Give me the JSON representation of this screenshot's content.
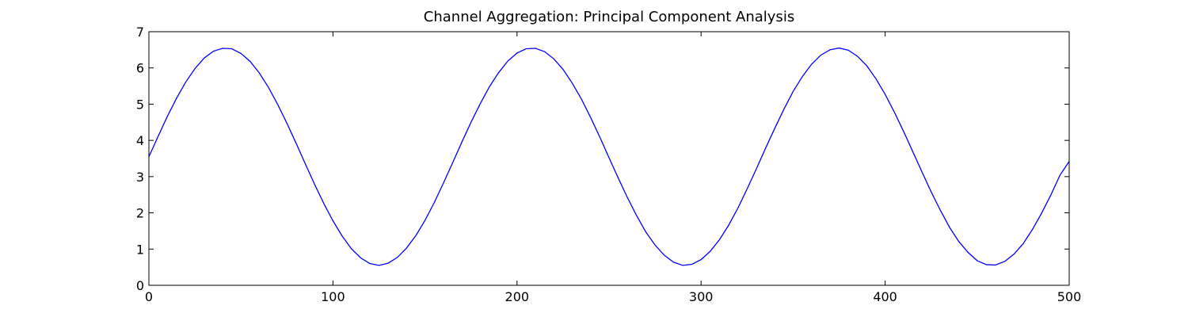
{
  "chart_data": {
    "type": "line",
    "title": "Channel Aggregation: Principal Component Analysis",
    "x": [
      0,
      5,
      10,
      15,
      20,
      25,
      30,
      35,
      40,
      45,
      50,
      55,
      60,
      65,
      70,
      75,
      80,
      85,
      90,
      95,
      100,
      105,
      110,
      115,
      120,
      125,
      130,
      135,
      140,
      145,
      150,
      155,
      160,
      165,
      170,
      175,
      180,
      185,
      190,
      195,
      200,
      205,
      210,
      215,
      220,
      225,
      230,
      235,
      240,
      245,
      250,
      255,
      260,
      265,
      270,
      275,
      280,
      285,
      290,
      295,
      300,
      305,
      310,
      315,
      320,
      325,
      330,
      335,
      340,
      345,
      350,
      355,
      360,
      365,
      370,
      375,
      380,
      385,
      390,
      395,
      400,
      405,
      410,
      415,
      420,
      425,
      430,
      435,
      440,
      445,
      450,
      455,
      460,
      465,
      470,
      475,
      480,
      485,
      490,
      495,
      500
    ],
    "series": [
      {
        "color": "#0000ff",
        "values": [
          3.55,
          4.11,
          4.66,
          5.16,
          5.61,
          5.98,
          6.27,
          6.46,
          6.54,
          6.53,
          6.4,
          6.18,
          5.86,
          5.46,
          4.99,
          4.47,
          3.92,
          3.35,
          2.79,
          2.26,
          1.78,
          1.36,
          1.01,
          0.76,
          0.6,
          0.55,
          0.61,
          0.77,
          1.03,
          1.37,
          1.79,
          2.28,
          2.82,
          3.38,
          3.95,
          4.5,
          5.01,
          5.48,
          5.87,
          6.19,
          6.41,
          6.53,
          6.54,
          6.45,
          6.25,
          5.96,
          5.58,
          5.14,
          4.63,
          4.09,
          3.52,
          2.96,
          2.42,
          1.92,
          1.47,
          1.11,
          0.83,
          0.64,
          0.55,
          0.58,
          0.71,
          0.94,
          1.26,
          1.66,
          2.13,
          2.66,
          3.21,
          3.78,
          4.33,
          4.86,
          5.35,
          5.76,
          6.1,
          6.35,
          6.5,
          6.55,
          6.49,
          6.32,
          6.06,
          5.7,
          5.27,
          4.78,
          4.25,
          3.69,
          3.13,
          2.58,
          2.07,
          1.6,
          1.21,
          0.91,
          0.68,
          0.57,
          0.56,
          0.66,
          0.86,
          1.15,
          1.54,
          1.99,
          2.49,
          3.04,
          3.42
        ]
      }
    ],
    "xlim": [
      0,
      500
    ],
    "xticks": [
      0,
      100,
      200,
      300,
      400,
      500
    ],
    "ylim": [
      0,
      7
    ],
    "yticks": [
      0,
      1,
      2,
      3,
      4,
      5,
      6,
      7
    ]
  }
}
